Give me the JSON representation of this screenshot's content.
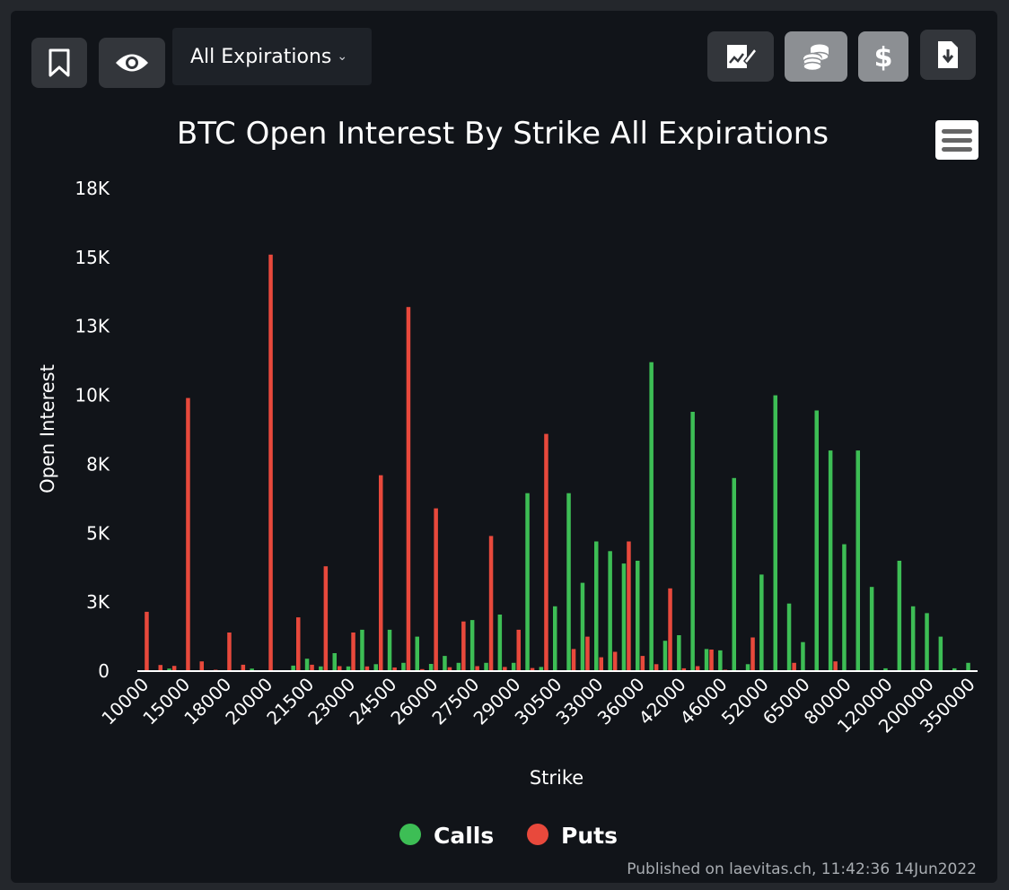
{
  "toolbar": {
    "dropdown_label": "All Expirations",
    "left_icons": [
      "bookmark-icon",
      "eye-icon"
    ],
    "right_icons": [
      "edit-chart-icon",
      "coins-icon",
      "dollar-icon",
      "download-icon"
    ]
  },
  "menu_icon": "hamburger-menu-icon",
  "publish_note": "Published on laevitas.ch, 11:42:36 14Jun2022",
  "colors": {
    "calls": "#3dbe55",
    "puts": "#e8493c",
    "background": "#111419"
  },
  "chart_data": {
    "type": "bar",
    "title": "BTC Open Interest By Strike All Expirations",
    "xlabel": "Strike",
    "ylabel": "Open Interest",
    "ylim": [
      0,
      18000
    ],
    "yticks": [
      0,
      2500,
      5000,
      7500,
      10000,
      12500,
      15000,
      17500
    ],
    "ytick_labels": [
      "0",
      "3K",
      "5K",
      "8K",
      "10K",
      "13K",
      "15K",
      "18K"
    ],
    "xtick_labels": [
      "10000",
      "15000",
      "18000",
      "20000",
      "21500",
      "23000",
      "24500",
      "26000",
      "27500",
      "29000",
      "30500",
      "33000",
      "36000",
      "42000",
      "46000",
      "52000",
      "65000",
      "80000",
      "120000",
      "200000",
      "350000"
    ],
    "legend_position": "bottom-center",
    "grid": false,
    "series": [
      {
        "name": "Calls",
        "color": "#3dbe55",
        "values": [
          0,
          0,
          90,
          0,
          0,
          0,
          0,
          0,
          90,
          0,
          0,
          200,
          450,
          170,
          650,
          170,
          1500,
          250,
          1500,
          300,
          1250,
          260,
          550,
          300,
          1850,
          300,
          2050,
          300,
          6450,
          150,
          2350,
          6450,
          3200,
          4700,
          4350,
          3900,
          4000,
          11200,
          1100,
          1300,
          9400,
          800,
          750,
          7000,
          250,
          3500,
          10000,
          2450,
          1050,
          9450,
          8000,
          4600,
          8000,
          3050,
          100,
          4000,
          2350,
          2100,
          1250,
          100,
          300
        ]
      },
      {
        "name": "Puts",
        "color": "#e8493c",
        "values": [
          2150,
          220,
          190,
          9900,
          350,
          50,
          1400,
          230,
          0,
          15100,
          30,
          1950,
          230,
          3800,
          180,
          1400,
          170,
          7100,
          130,
          13200,
          70,
          5900,
          140,
          1800,
          180,
          4900,
          150,
          1500,
          110,
          8600,
          30,
          800,
          1250,
          500,
          700,
          4700,
          550,
          250,
          3000,
          100,
          180,
          780,
          50,
          20,
          1220,
          30,
          20,
          300,
          0,
          0,
          350,
          30,
          0,
          0,
          0,
          0,
          0,
          0,
          0,
          0,
          0
        ]
      }
    ]
  }
}
